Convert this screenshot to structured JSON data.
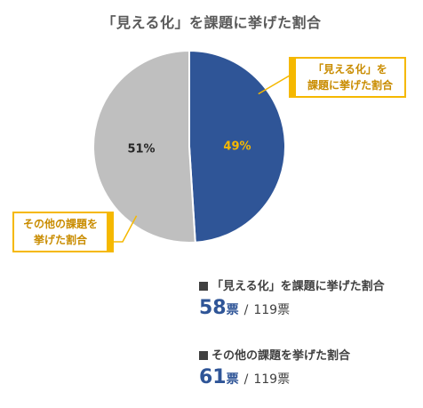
{
  "chart_data": {
    "type": "pie",
    "title": "「見える化」を課題に挙げた割合",
    "slices": [
      {
        "label": "「見える化」を 課題に挙げた割合",
        "value": 49,
        "display": "49%",
        "color": "#2f5597"
      },
      {
        "label": "その他の課題を 挙げた割合",
        "value": 51,
        "display": "51%",
        "color": "#bfbfbf"
      }
    ]
  },
  "callouts": {
    "right_line1": "「見える化」を",
    "right_line2": "課題に挙げた割合",
    "left_line1": "その他の課題を",
    "left_line2": "挙げた割合"
  },
  "summary": {
    "item1_label": "「見える化」を課題に挙げた割合",
    "item1_votes": "58",
    "item1_unit": "票",
    "item1_total": "119票",
    "item2_label": "その他の課題を挙げた割合",
    "item2_votes": "61",
    "item2_unit": "票",
    "item2_total": "119票",
    "separator": "/"
  }
}
